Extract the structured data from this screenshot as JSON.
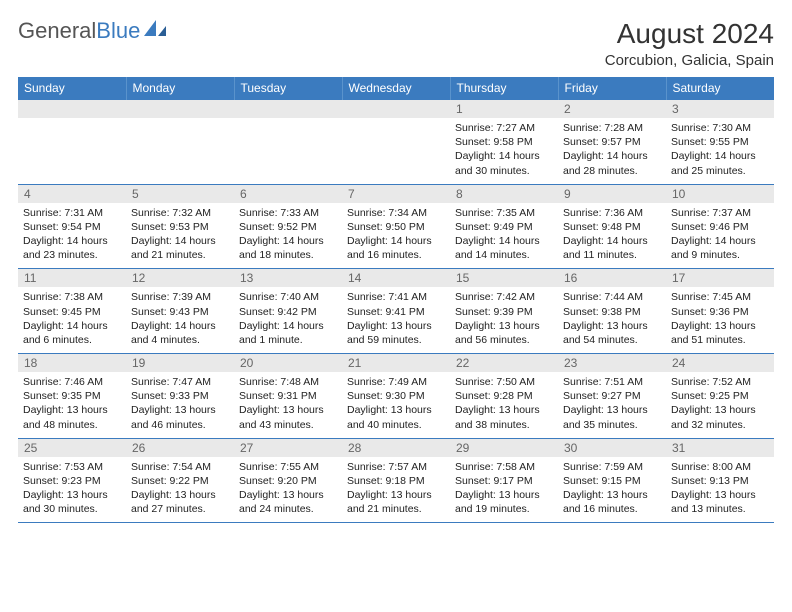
{
  "logo": {
    "part1": "General",
    "part2": "Blue"
  },
  "title": "August 2024",
  "subtitle": "Corcubion, Galicia, Spain",
  "colors": {
    "header_bg": "#3b7bbf",
    "daynum_bg": "#e9e9e9",
    "border": "#3b7bbf"
  },
  "weekdays": [
    "Sunday",
    "Monday",
    "Tuesday",
    "Wednesday",
    "Thursday",
    "Friday",
    "Saturday"
  ],
  "weeks": [
    [
      null,
      null,
      null,
      null,
      {
        "n": "1",
        "sr": "7:27 AM",
        "ss": "9:58 PM",
        "dl": "14 hours and 30 minutes."
      },
      {
        "n": "2",
        "sr": "7:28 AM",
        "ss": "9:57 PM",
        "dl": "14 hours and 28 minutes."
      },
      {
        "n": "3",
        "sr": "7:30 AM",
        "ss": "9:55 PM",
        "dl": "14 hours and 25 minutes."
      }
    ],
    [
      {
        "n": "4",
        "sr": "7:31 AM",
        "ss": "9:54 PM",
        "dl": "14 hours and 23 minutes."
      },
      {
        "n": "5",
        "sr": "7:32 AM",
        "ss": "9:53 PM",
        "dl": "14 hours and 21 minutes."
      },
      {
        "n": "6",
        "sr": "7:33 AM",
        "ss": "9:52 PM",
        "dl": "14 hours and 18 minutes."
      },
      {
        "n": "7",
        "sr": "7:34 AM",
        "ss": "9:50 PM",
        "dl": "14 hours and 16 minutes."
      },
      {
        "n": "8",
        "sr": "7:35 AM",
        "ss": "9:49 PM",
        "dl": "14 hours and 14 minutes."
      },
      {
        "n": "9",
        "sr": "7:36 AM",
        "ss": "9:48 PM",
        "dl": "14 hours and 11 minutes."
      },
      {
        "n": "10",
        "sr": "7:37 AM",
        "ss": "9:46 PM",
        "dl": "14 hours and 9 minutes."
      }
    ],
    [
      {
        "n": "11",
        "sr": "7:38 AM",
        "ss": "9:45 PM",
        "dl": "14 hours and 6 minutes."
      },
      {
        "n": "12",
        "sr": "7:39 AM",
        "ss": "9:43 PM",
        "dl": "14 hours and 4 minutes."
      },
      {
        "n": "13",
        "sr": "7:40 AM",
        "ss": "9:42 PM",
        "dl": "14 hours and 1 minute."
      },
      {
        "n": "14",
        "sr": "7:41 AM",
        "ss": "9:41 PM",
        "dl": "13 hours and 59 minutes."
      },
      {
        "n": "15",
        "sr": "7:42 AM",
        "ss": "9:39 PM",
        "dl": "13 hours and 56 minutes."
      },
      {
        "n": "16",
        "sr": "7:44 AM",
        "ss": "9:38 PM",
        "dl": "13 hours and 54 minutes."
      },
      {
        "n": "17",
        "sr": "7:45 AM",
        "ss": "9:36 PM",
        "dl": "13 hours and 51 minutes."
      }
    ],
    [
      {
        "n": "18",
        "sr": "7:46 AM",
        "ss": "9:35 PM",
        "dl": "13 hours and 48 minutes."
      },
      {
        "n": "19",
        "sr": "7:47 AM",
        "ss": "9:33 PM",
        "dl": "13 hours and 46 minutes."
      },
      {
        "n": "20",
        "sr": "7:48 AM",
        "ss": "9:31 PM",
        "dl": "13 hours and 43 minutes."
      },
      {
        "n": "21",
        "sr": "7:49 AM",
        "ss": "9:30 PM",
        "dl": "13 hours and 40 minutes."
      },
      {
        "n": "22",
        "sr": "7:50 AM",
        "ss": "9:28 PM",
        "dl": "13 hours and 38 minutes."
      },
      {
        "n": "23",
        "sr": "7:51 AM",
        "ss": "9:27 PM",
        "dl": "13 hours and 35 minutes."
      },
      {
        "n": "24",
        "sr": "7:52 AM",
        "ss": "9:25 PM",
        "dl": "13 hours and 32 minutes."
      }
    ],
    [
      {
        "n": "25",
        "sr": "7:53 AM",
        "ss": "9:23 PM",
        "dl": "13 hours and 30 minutes."
      },
      {
        "n": "26",
        "sr": "7:54 AM",
        "ss": "9:22 PM",
        "dl": "13 hours and 27 minutes."
      },
      {
        "n": "27",
        "sr": "7:55 AM",
        "ss": "9:20 PM",
        "dl": "13 hours and 24 minutes."
      },
      {
        "n": "28",
        "sr": "7:57 AM",
        "ss": "9:18 PM",
        "dl": "13 hours and 21 minutes."
      },
      {
        "n": "29",
        "sr": "7:58 AM",
        "ss": "9:17 PM",
        "dl": "13 hours and 19 minutes."
      },
      {
        "n": "30",
        "sr": "7:59 AM",
        "ss": "9:15 PM",
        "dl": "13 hours and 16 minutes."
      },
      {
        "n": "31",
        "sr": "8:00 AM",
        "ss": "9:13 PM",
        "dl": "13 hours and 13 minutes."
      }
    ]
  ],
  "labels": {
    "sunrise": "Sunrise: ",
    "sunset": "Sunset: ",
    "daylight": "Daylight: "
  }
}
